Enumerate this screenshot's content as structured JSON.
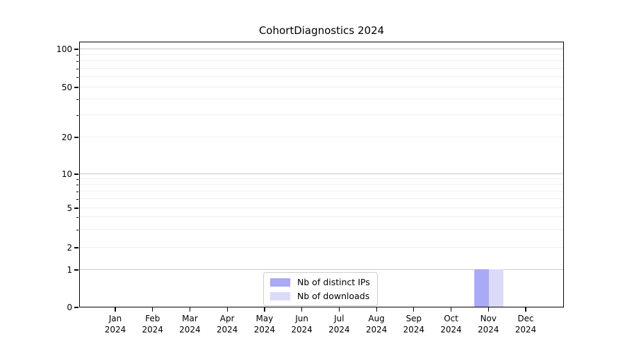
{
  "title": "CohortDiagnostics 2024",
  "legend": {
    "items": [
      {
        "label": "Nb of distinct IPs",
        "color": "#a9a9f5"
      },
      {
        "label": "Nb of downloads",
        "color": "#dbdbf8"
      }
    ]
  },
  "chart_data": {
    "type": "bar",
    "title": "CohortDiagnostics 2024",
    "categories": [
      "Jan 2024",
      "Feb 2024",
      "Mar 2024",
      "Apr 2024",
      "May 2024",
      "Jun 2024",
      "Jul 2024",
      "Aug 2024",
      "Sep 2024",
      "Oct 2024",
      "Nov 2024",
      "Dec 2024"
    ],
    "x_tick_line1": [
      "Jan",
      "Feb",
      "Mar",
      "Apr",
      "May",
      "Jun",
      "Jul",
      "Aug",
      "Sep",
      "Oct",
      "Nov",
      "Dec"
    ],
    "x_tick_line2": "2024",
    "series": [
      {
        "name": "Nb of distinct IPs",
        "color": "#a9a9f5",
        "values": [
          0,
          0,
          0,
          0,
          0,
          0,
          0,
          0,
          0,
          0,
          1,
          0
        ]
      },
      {
        "name": "Nb of downloads",
        "color": "#dbdbf8",
        "values": [
          0,
          0,
          0,
          0,
          0,
          0,
          0,
          0,
          0,
          0,
          1,
          0
        ]
      }
    ],
    "y_ticks": [
      0,
      1,
      2,
      5,
      10,
      20,
      50,
      100
    ],
    "y_scale": "symlog",
    "ylim": [
      0,
      115
    ],
    "grid": "both",
    "legend_position": "lower center",
    "colors": {
      "spine": "#000000",
      "major_grid": "#c9c9c9",
      "minor_grid": "#efefef",
      "background": "#ffffff"
    }
  }
}
